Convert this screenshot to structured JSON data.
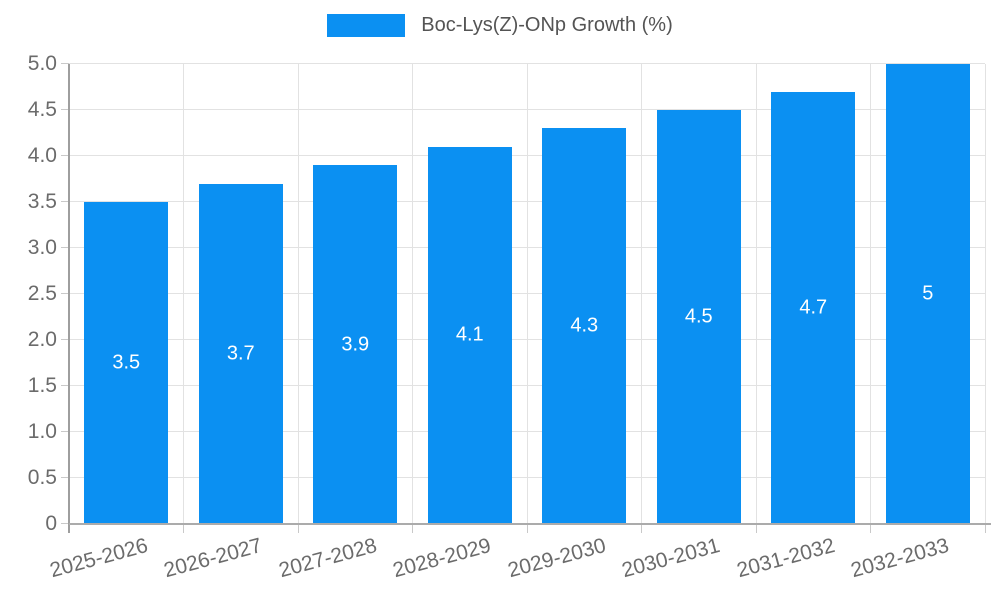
{
  "legend": {
    "label": "Boc-Lys(Z)-ONp Growth (%)"
  },
  "chart_data": {
    "type": "bar",
    "title": "Boc-Lys(Z)-ONp Growth (%)",
    "series_name": "Boc-Lys(Z)-ONp Growth (%)",
    "categories": [
      "2025-2026",
      "2026-2027",
      "2027-2028",
      "2028-2029",
      "2029-2030",
      "2030-2031",
      "2031-2032",
      "2032-2033"
    ],
    "values": [
      3.5,
      3.7,
      3.9,
      4.1,
      4.3,
      4.5,
      4.7,
      5
    ],
    "bar_value_labels": [
      "3.5",
      "3.7",
      "3.9",
      "4.1",
      "4.3",
      "4.5",
      "4.7",
      "5"
    ],
    "xlabel": "",
    "ylabel": "",
    "ylim": [
      0,
      5
    ],
    "ytick_step": 0.5,
    "ytick_labels": [
      "0",
      "0.5",
      "1.0",
      "1.5",
      "2.0",
      "2.5",
      "3.0",
      "3.5",
      "4.0",
      "4.5",
      "5.0"
    ],
    "grid": true,
    "legend_position": "top",
    "colors": {
      "bar": "#0b90f2",
      "bar_label": "#ffffff",
      "grid": "#e2e2e2",
      "axis": "#9e9e9e",
      "tick": "#c9c9c9",
      "text": "#6b6b6b",
      "legend_text": "#545454"
    }
  }
}
